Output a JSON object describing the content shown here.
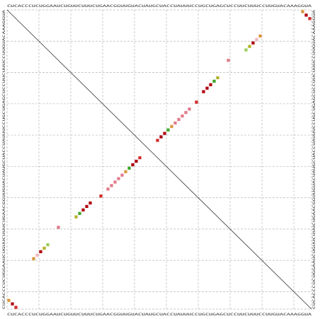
{
  "sequence_top": "CUCACCCUCUGGAAUCUGUUCUUUCUGAACGGUUGUACUAUGCUACCUAUUUCCUGCUGAGCUCCUUCUUUCCUUGUACAAAGGUA",
  "sequence_left": "CUCACCCUCUGGAAUCUGUUCUUUCUGAACGGUUGUACUAUGCUACCUAUUUCCUGCUGAGCUCCUUCUUUCCUUGUACAAAGGUA",
  "sequence_bottom": "CUCACCCUCUGGAAUCUGUUCUUUCUGAACGGUUGUACUAUGCUACCUAUUUCCUGCUGAGCUCCUUCUUUCCUUGUACAAAGGUA",
  "sequence_right": "CUCACCCUCUGGAAUCUGUUCUUUCUGAACGGUUGUACUAUGCUACCUAUUUCCUGCUGAGCUCCUUCUUUCCUUGUACAAAGGUA",
  "colors": {
    "dark_red": "#b0000f",
    "red": "#d42a2a",
    "pink": "#e27a8a",
    "light_pink": "#f0b6be",
    "orange": "#d9963a",
    "green": "#3fa62a",
    "light_green": "#9ccf5a",
    "yellow_green": "#b3b22a",
    "grid": "#b7b7b7",
    "diagonal": "#333333"
  },
  "chart_data": {
    "type": "heatmap",
    "description_units": "sequence positions (1-based)",
    "sequence_length": 86,
    "grid_interval": 9,
    "pairs": [
      {
        "i": 1,
        "j": 84,
        "color": "orange"
      },
      {
        "i": 2,
        "j": 85,
        "color": "dark_red"
      },
      {
        "i": 3,
        "j": 86,
        "color": "red"
      },
      {
        "i": 8,
        "j": 72,
        "color": "orange"
      },
      {
        "i": 9,
        "j": 71,
        "color": "light_pink"
      },
      {
        "i": 10,
        "j": 70,
        "color": "dark_red"
      },
      {
        "i": 11,
        "j": 69,
        "color": "yellow_green"
      },
      {
        "i": 12,
        "j": 68,
        "color": "light_green"
      },
      {
        "i": 15,
        "j": 63,
        "color": "pink"
      },
      {
        "i": 20,
        "j": 60,
        "color": "yellow_green"
      },
      {
        "i": 21,
        "j": 59,
        "color": "green"
      },
      {
        "i": 22,
        "j": 58,
        "color": "dark_red"
      },
      {
        "i": 23,
        "j": 57,
        "color": "dark_red"
      },
      {
        "i": 24,
        "j": 56,
        "color": "dark_red"
      },
      {
        "i": 27,
        "j": 54,
        "color": "red"
      },
      {
        "i": 29,
        "j": 52,
        "color": "pink"
      },
      {
        "i": 30,
        "j": 51,
        "color": "pink"
      },
      {
        "i": 31,
        "j": 50,
        "color": "pink"
      },
      {
        "i": 32,
        "j": 49,
        "color": "pink"
      },
      {
        "i": 33,
        "j": 48,
        "color": "pink"
      },
      {
        "i": 34,
        "j": 47,
        "color": "orange"
      },
      {
        "i": 35,
        "j": 46,
        "color": "green"
      },
      {
        "i": 36,
        "j": 45,
        "color": "dark_red"
      },
      {
        "i": 37,
        "j": 44,
        "color": "dark_red"
      },
      {
        "i": 38,
        "j": 43,
        "color": "red"
      }
    ],
    "symmetric": true,
    "grid": true,
    "diagonal_line": true
  }
}
